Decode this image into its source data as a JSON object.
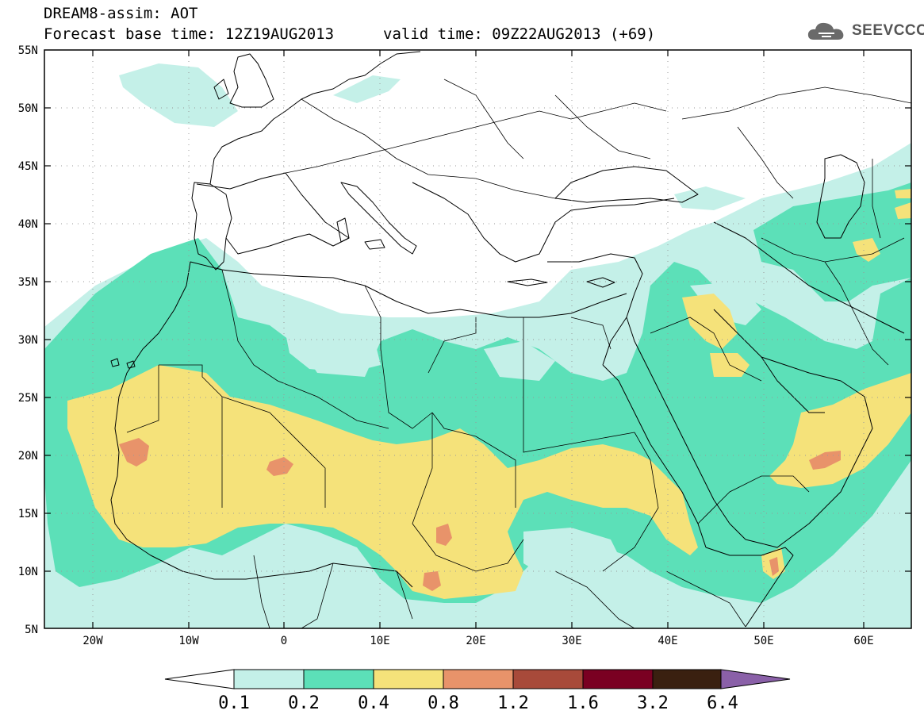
{
  "header": {
    "title": "DREAM8-assim: AOT",
    "base_time": "Forecast base time: 12Z19AUG2013",
    "valid_time": "valid time: 09Z22AUG2013 (+69)",
    "logo_text": "SEEVCCC",
    "logo_icon": "cloud-logo-icon"
  },
  "map": {
    "lon_ticks": [
      "20W",
      "10W",
      "0",
      "10E",
      "20E",
      "30E",
      "40E",
      "50E",
      "60E"
    ],
    "lat_ticks": [
      "55N",
      "50N",
      "45N",
      "40N",
      "35N",
      "30N",
      "25N",
      "20N",
      "15N",
      "10N",
      "5N"
    ]
  },
  "colorbar": {
    "labels": [
      "0.1",
      "0.2",
      "0.4",
      "0.8",
      "1.2",
      "1.6",
      "3.2",
      "6.4"
    ],
    "colors": [
      "#c4f0e8",
      "#5ce0b8",
      "#f5e27a",
      "#e8936a",
      "#a84a3a",
      "#7a0022",
      "#3a2010",
      "#8a60a8"
    ]
  }
}
